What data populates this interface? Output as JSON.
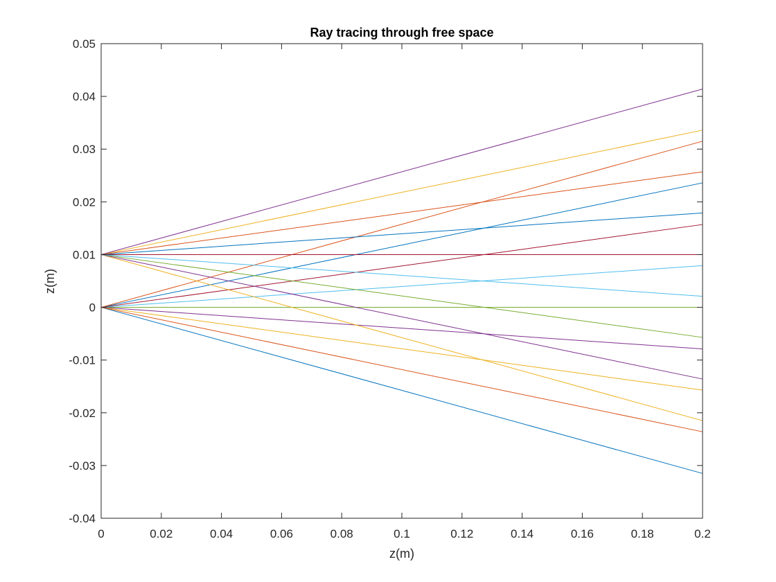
{
  "chart_data": {
    "type": "line",
    "title": "Ray tracing through free space",
    "xlabel": "z(m)",
    "ylabel": "z(m)",
    "xlim": [
      0,
      0.2
    ],
    "ylim": [
      -0.04,
      0.05
    ],
    "x_ticks": [
      "0",
      "0.02",
      "0.04",
      "0.06",
      "0.08",
      "0.1",
      "0.12",
      "0.14",
      "0.16",
      "0.18",
      "0.2"
    ],
    "y_ticks": [
      "-0.04",
      "-0.03",
      "-0.02",
      "-0.01",
      "0",
      "0.01",
      "0.02",
      "0.03",
      "0.04",
      "0.05"
    ],
    "grid": false,
    "series": [
      {
        "color": "#0072BD",
        "x": [
          0,
          0.2
        ],
        "y": [
          0,
          -0.0315
        ]
      },
      {
        "color": "#D95319",
        "x": [
          0,
          0.2
        ],
        "y": [
          0,
          -0.0236
        ]
      },
      {
        "color": "#EDB120",
        "x": [
          0,
          0.2
        ],
        "y": [
          0,
          -0.0157
        ]
      },
      {
        "color": "#7E2F8E",
        "x": [
          0,
          0.2
        ],
        "y": [
          0,
          -0.0079
        ]
      },
      {
        "color": "#77AC30",
        "x": [
          0,
          0.2
        ],
        "y": [
          0,
          0
        ]
      },
      {
        "color": "#4DBEEE",
        "x": [
          0,
          0.2
        ],
        "y": [
          0,
          0.0079
        ]
      },
      {
        "color": "#A2142F",
        "x": [
          0,
          0.2
        ],
        "y": [
          0,
          0.0157
        ]
      },
      {
        "color": "#0072BD",
        "x": [
          0,
          0.2
        ],
        "y": [
          0,
          0.0236
        ]
      },
      {
        "color": "#D95319",
        "x": [
          0,
          0.2
        ],
        "y": [
          0,
          0.0315
        ]
      },
      {
        "color": "#EDB120",
        "x": [
          0,
          0.2
        ],
        "y": [
          0.01,
          -0.0215
        ]
      },
      {
        "color": "#7E2F8E",
        "x": [
          0,
          0.2
        ],
        "y": [
          0.01,
          -0.0136
        ]
      },
      {
        "color": "#77AC30",
        "x": [
          0,
          0.2
        ],
        "y": [
          0.01,
          -0.0057
        ]
      },
      {
        "color": "#4DBEEE",
        "x": [
          0,
          0.2
        ],
        "y": [
          0.01,
          0.0021
        ]
      },
      {
        "color": "#A2142F",
        "x": [
          0,
          0.2
        ],
        "y": [
          0.01,
          0.01
        ]
      },
      {
        "color": "#0072BD",
        "x": [
          0,
          0.2
        ],
        "y": [
          0.01,
          0.0179
        ]
      },
      {
        "color": "#D95319",
        "x": [
          0,
          0.2
        ],
        "y": [
          0.01,
          0.0257
        ]
      },
      {
        "color": "#EDB120",
        "x": [
          0,
          0.2
        ],
        "y": [
          0.01,
          0.0336
        ]
      },
      {
        "color": "#7E2F8E",
        "x": [
          0,
          0.2
        ],
        "y": [
          0.01,
          0.0414
        ]
      }
    ]
  }
}
